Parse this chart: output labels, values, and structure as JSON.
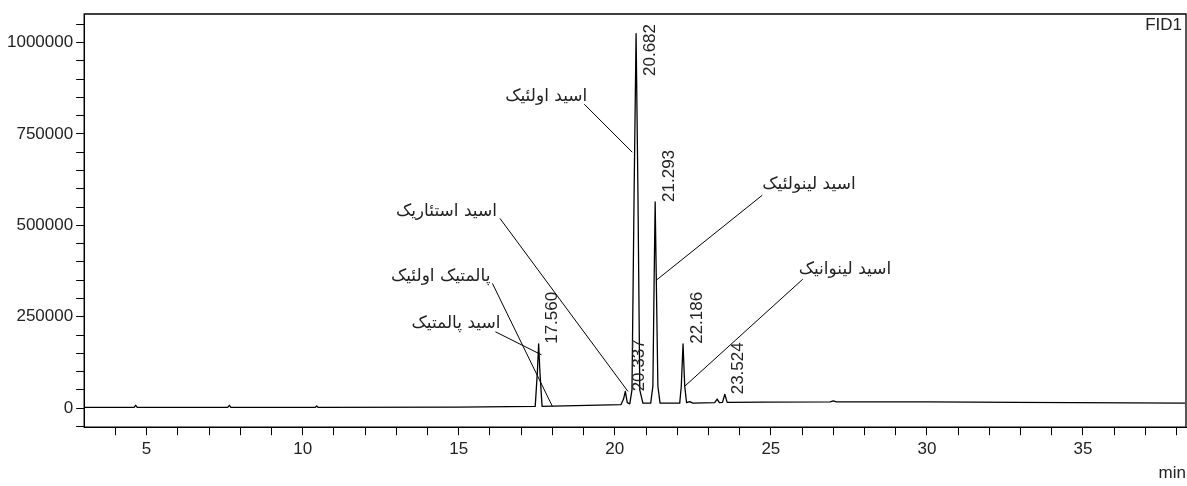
{
  "chart_data": {
    "type": "line",
    "xlabel": "min",
    "annotations": [
      "FID1",
      {
        "text": "17.560",
        "x": 17.56,
        "y": 176000
      },
      {
        "text": "20.337",
        "x": 20.337,
        "y": 46000
      },
      {
        "text": "20.682",
        "x": 20.682,
        "y": 1024000
      },
      {
        "text": "21.293",
        "x": 21.293,
        "y": 564000
      },
      {
        "text": "22.186",
        "x": 22.186,
        "y": 176000
      },
      {
        "text": "23.524",
        "x": 23.524,
        "y": 38000
      },
      {
        "text": "اسید اولئیک",
        "x": 20.56,
        "y": 700000
      },
      {
        "text": "اسید استئاریک",
        "x": 20.42,
        "y": 46000
      },
      {
        "text": "اسید لینولئیک",
        "x": 21.33,
        "y": 350000
      },
      {
        "text": "اسید لینوانیک",
        "x": 22.24,
        "y": 60000
      },
      {
        "text": "پالمتیک اولئیک",
        "x": 18.0,
        "y": 5000
      },
      {
        "text": "اسید پالمتیک",
        "x": 17.65,
        "y": 146000
      }
    ],
    "series": [
      {
        "color": "#000000",
        "x": [
          3.0,
          4.6,
          4.65,
          4.7,
          7.6,
          7.65,
          7.7,
          10.4,
          10.45,
          10.5,
          15,
          17.45,
          17.52,
          17.56,
          17.6,
          17.67,
          20.2,
          20.28,
          20.337,
          20.4,
          20.48,
          20.55,
          20.62,
          20.682,
          20.74,
          20.8,
          20.9,
          21.15,
          21.22,
          21.26,
          21.293,
          21.33,
          21.38,
          21.45,
          22.08,
          22.13,
          22.186,
          22.24,
          22.3,
          22.4,
          22.5,
          23.2,
          23.28,
          23.35,
          23.45,
          23.524,
          23.6,
          26.9,
          27.0,
          27.1,
          30,
          38.27
        ],
        "values": [
          2000,
          2000,
          8000,
          2000,
          2000,
          8000,
          2000,
          2000,
          6000,
          2000,
          3000,
          5000,
          100000,
          176000,
          100000,
          5000,
          10000,
          25000,
          46000,
          15000,
          12000,
          50000,
          600000,
          1024000,
          600000,
          50000,
          14000,
          14000,
          60000,
          350000,
          564000,
          350000,
          60000,
          14000,
          14000,
          60000,
          176000,
          60000,
          15000,
          18000,
          14000,
          15000,
          25000,
          15000,
          16000,
          38000,
          16000,
          17000,
          20000,
          17000,
          17000,
          14000
        ]
      }
    ],
    "xlim": [
      3.0,
      38.3
    ],
    "xticks": [
      {
        "value": 4,
        "label": null
      },
      5,
      {
        "value": 6,
        "label": null
      },
      {
        "value": 7,
        "label": null
      },
      {
        "value": 8,
        "label": null
      },
      {
        "value": 9,
        "label": null
      },
      10,
      {
        "value": 11,
        "label": null
      },
      {
        "value": 12,
        "label": null
      },
      {
        "value": 13,
        "label": null
      },
      {
        "value": 14,
        "label": null
      },
      15,
      {
        "value": 16,
        "label": null
      },
      {
        "value": 17,
        "label": null
      },
      {
        "value": 18,
        "label": null
      },
      {
        "value": 19,
        "label": null
      },
      20,
      {
        "value": 21,
        "label": null
      },
      {
        "value": 22,
        "label": null
      },
      {
        "value": 23,
        "label": null
      },
      {
        "value": 24,
        "label": null
      },
      25,
      {
        "value": 26,
        "label": null
      },
      {
        "value": 27,
        "label": null
      },
      {
        "value": 28,
        "label": null
      },
      {
        "value": 29,
        "label": null
      },
      30,
      {
        "value": 31,
        "label": null
      },
      {
        "value": 32,
        "label": null
      },
      {
        "value": 33,
        "label": null
      },
      {
        "value": 34,
        "label": null
      },
      35,
      {
        "value": 36,
        "label": null
      },
      {
        "value": 37,
        "label": null
      },
      {
        "value": 38,
        "label": null
      }
    ],
    "ylim": [
      -52000,
      1078000
    ],
    "yticks": [
      {
        "value": -50000,
        "label": null
      },
      0,
      {
        "value": 50000,
        "label": null
      },
      {
        "value": 100000,
        "label": null
      },
      {
        "value": 150000,
        "label": null
      },
      {
        "value": 200000,
        "label": null
      },
      250000,
      {
        "value": 300000,
        "label": null
      },
      {
        "value": 350000,
        "label": null
      },
      {
        "value": 400000,
        "label": null
      },
      {
        "value": 450000,
        "label": null
      },
      500000,
      {
        "value": 550000,
        "label": null
      },
      {
        "value": 600000,
        "label": null
      },
      {
        "value": 650000,
        "label": null
      },
      {
        "value": 700000,
        "label": null
      },
      750000,
      {
        "value": 800000,
        "label": null
      },
      {
        "value": 850000,
        "label": null
      },
      {
        "value": 900000,
        "label": null
      },
      {
        "value": 950000,
        "label": null
      },
      1000000,
      {
        "value": 1050000,
        "label": null
      }
    ],
    "marker": "none",
    "legend": false,
    "grid": false
  }
}
